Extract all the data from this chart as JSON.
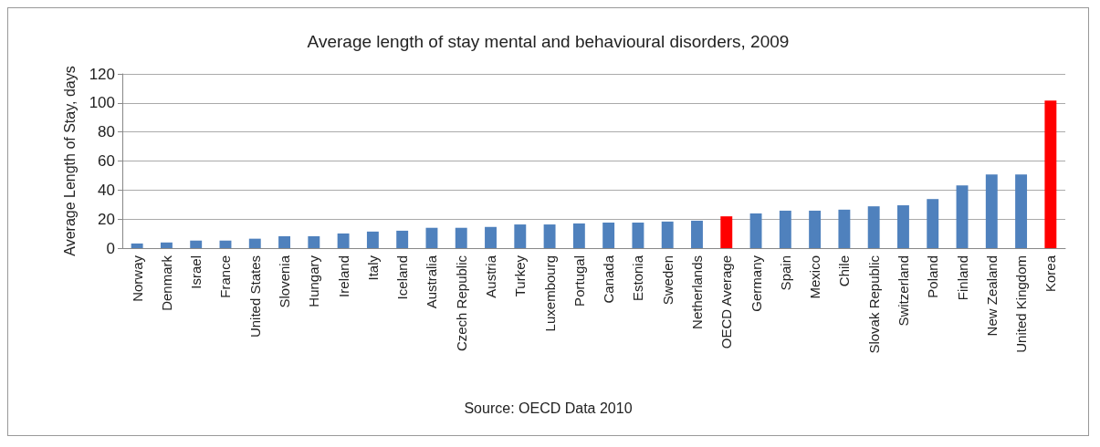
{
  "chart_data": {
    "type": "bar",
    "title": "Average length of stay mental and behavioural disorders, 2009",
    "ylabel": "Average Length of Stay, days",
    "categories": [
      "Norway",
      "Denmark",
      "Israel",
      "France",
      "United States",
      "Slovenia",
      "Hungary",
      "Ireland",
      "Italy",
      "Iceland",
      "Australia",
      "Czech Republic",
      "Austria",
      "Turkey",
      "Luxembourg",
      "Portugal",
      "Canada",
      "Estonia",
      "Sweden",
      "Netherlands",
      "OECD Average",
      "Germany",
      "Spain",
      "Mexico",
      "Chile",
      "Slovak Republic",
      "Switzerland",
      "Poland",
      "Finland",
      "New Zealand",
      "United Kingdom",
      "Korea"
    ],
    "values": [
      3.2,
      3.9,
      5.2,
      5.2,
      6.5,
      8.2,
      8.2,
      10.1,
      11.4,
      12,
      14,
      14,
      14.6,
      16.3,
      16.3,
      17,
      17.6,
      17.6,
      18.3,
      18.9,
      21.9,
      23.9,
      25.8,
      25.8,
      26.5,
      28.8,
      29.5,
      33.8,
      43.2,
      50.8,
      50.8,
      101.7
    ],
    "colors": [
      "#4f81bd",
      "#4f81bd",
      "#4f81bd",
      "#4f81bd",
      "#4f81bd",
      "#4f81bd",
      "#4f81bd",
      "#4f81bd",
      "#4f81bd",
      "#4f81bd",
      "#4f81bd",
      "#4f81bd",
      "#4f81bd",
      "#4f81bd",
      "#4f81bd",
      "#4f81bd",
      "#4f81bd",
      "#4f81bd",
      "#4f81bd",
      "#4f81bd",
      "#ff0000",
      "#4f81bd",
      "#4f81bd",
      "#4f81bd",
      "#4f81bd",
      "#4f81bd",
      "#4f81bd",
      "#4f81bd",
      "#4f81bd",
      "#4f81bd",
      "#4f81bd",
      "#ff0000"
    ],
    "ylim": [
      0,
      120
    ],
    "yticks": [
      0,
      20,
      40,
      60,
      80,
      100,
      120
    ],
    "grid": "y",
    "annotations": [
      "Source: OECD Data 2010"
    ]
  }
}
